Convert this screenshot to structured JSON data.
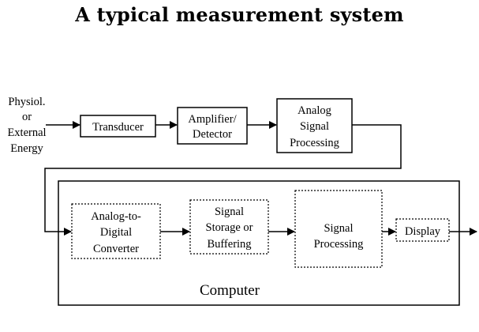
{
  "title": "A typical measurement system",
  "input_label": [
    "Physiol.",
    "or",
    "External",
    "Energy"
  ],
  "blocks": {
    "transducer": [
      "Transducer"
    ],
    "amplifier": [
      "Amplifier/",
      "Detector"
    ],
    "analog_processing": [
      "Analog",
      "Signal",
      "Processing"
    ],
    "adc": [
      "Analog-to-",
      "Digital",
      "Converter"
    ],
    "storage": [
      "Signal",
      "Storage or",
      "Buffering"
    ],
    "signal_processing": [
      "Signal",
      "Processing"
    ],
    "display": [
      "Display"
    ]
  },
  "computer_label": "Computer"
}
